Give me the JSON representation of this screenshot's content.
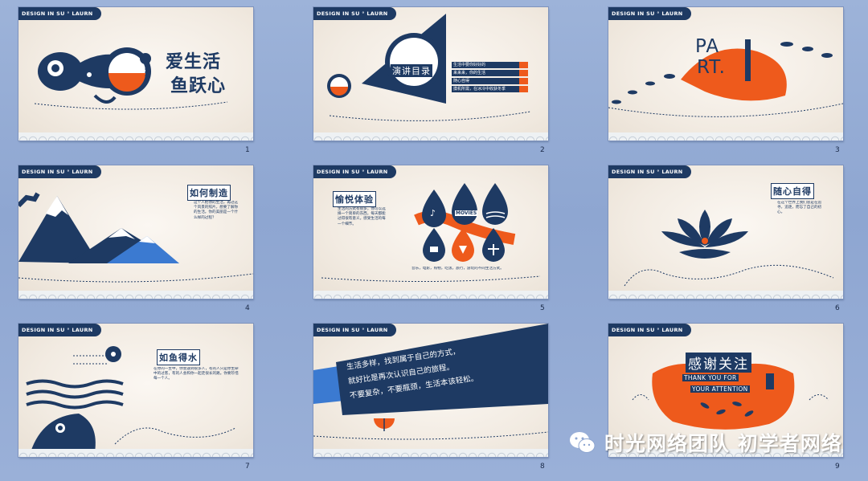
{
  "brand_label": "DESIGN IN SU ° LAURN",
  "slides": [
    {
      "num": "1",
      "title_line1": "爱生活",
      "title_line2": "鱼跃心"
    },
    {
      "num": "2",
      "title": "演讲目录",
      "items": [
        "生活中要你好好的",
        "来来来，你的生活",
        "随心自得",
        "摸机所需，在冰冷中收获冬季"
      ]
    },
    {
      "num": "3",
      "part": "PA\nRT.",
      "digit": "1"
    },
    {
      "num": "4",
      "title": "如何制造",
      "body": "这个人把你的生活，再过这个风景的照片，想要了解你的生活。你的美丽是一个什么样的过程？"
    },
    {
      "num": "5",
      "title": "愉悦体验",
      "body": "生活的方式有很多，你可以选择一个简单的东西，每天都能过得很有意义。感受生活的每一个细节。",
      "caption": "音乐，电影，购物，吃饭，旅行，游玩的不同生活方式。",
      "movies": "MOVIES"
    },
    {
      "num": "6",
      "title": "随心自得",
      "body": "在这个世界上我们总是在追寻，追逐，而忘了自己的初心。"
    },
    {
      "num": "7",
      "title": "如鱼得水",
      "body": "在你的一生中，你会遇到很多人，有的人只是你生命中的过客，有的人会和你一起走很长的路。你要珍惜每一个人。"
    },
    {
      "num": "8",
      "quote_line1": "生活多样，找到属于自己的方式，",
      "quote_line2": "就好比是再次认识自己的旅程。",
      "quote_line3": "不要复杂，不要瓶颈，生活本该轻松。"
    },
    {
      "num": "9",
      "title": "感谢关注",
      "sub_line1": "THANK YOU FOR",
      "sub_line2": "YOUR ATTENTION"
    }
  ],
  "watermark_text": "时光网络团队 初学者网络",
  "colors": {
    "navy": "#1e3a63",
    "orange": "#ee5a1c",
    "cream": "#f5efe7"
  }
}
